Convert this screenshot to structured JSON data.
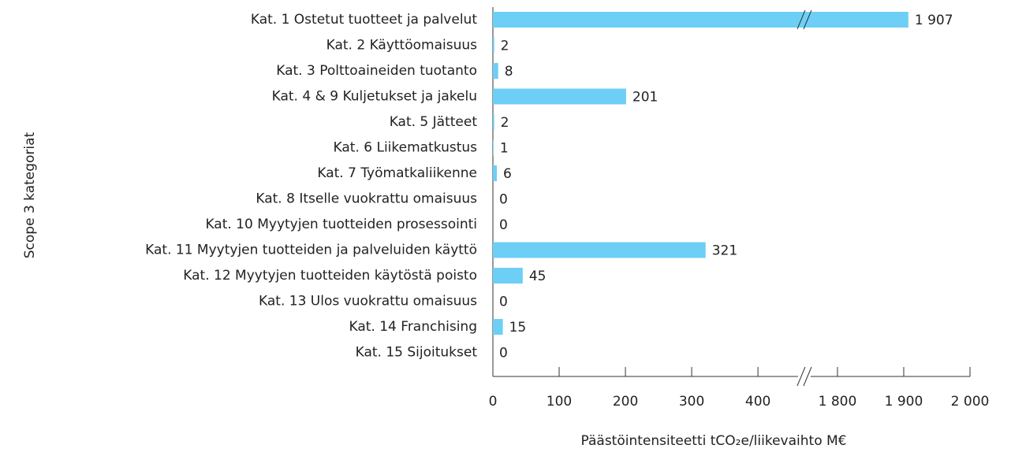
{
  "chart_data": {
    "type": "hbar",
    "ylabel": "Scope 3 kategoriat",
    "xlabel": "Päästöintensiteetti tCO₂e/liikevaihto M€",
    "categories": [
      "Kat. 1 Ostetut tuotteet ja palvelut",
      "Kat. 2 Käyttöomaisuus",
      "Kat. 3 Polttoaineiden tuotanto",
      "Kat. 4 & 9 Kuljetukset ja jakelu",
      "Kat. 5 Jätteet",
      "Kat. 6 Liikematkustus",
      "Kat. 7 Työmatkaliikenne",
      "Kat. 8 Itselle vuokrattu omaisuus",
      "Kat. 10 Myytyjen tuotteiden prosessointi",
      "Kat. 11 Myytyjen tuotteiden ja palveluiden käyttö",
      "Kat. 12 Myytyjen tuotteiden käytöstä poisto",
      "Kat. 13 Ulos vuokrattu omaisuus",
      "Kat. 14 Franchising",
      "Kat. 15 Sijoitukset"
    ],
    "values": [
      1907,
      2,
      8,
      201,
      2,
      1,
      6,
      0,
      0,
      321,
      45,
      0,
      15,
      0
    ],
    "value_labels": [
      "1 907",
      "2",
      "8",
      "201",
      "2",
      "1",
      "6",
      "0",
      "0",
      "321",
      "45",
      "0",
      "15",
      "0"
    ],
    "color": "#6dcff6",
    "xlim": [
      0,
      2000
    ],
    "xbreak": [
      470,
      1750
    ],
    "xticks": [
      0,
      100,
      200,
      300,
      400,
      {
        "value": 1800,
        "label": "1 800"
      },
      {
        "value": 1900,
        "label": "1 900"
      },
      {
        "value": 2000,
        "label": "2 000"
      }
    ]
  }
}
